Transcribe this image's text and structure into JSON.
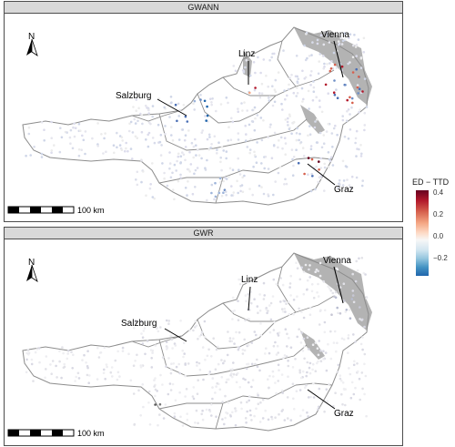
{
  "panels": [
    {
      "strip_label": "GWANN",
      "scalebar_label": "100 km",
      "cities": [
        {
          "name": "Linz"
        },
        {
          "name": "Vienna"
        },
        {
          "name": "Salzburg"
        },
        {
          "name": "Graz"
        }
      ],
      "north_label": "N"
    },
    {
      "strip_label": "GWR",
      "scalebar_label": "100 km",
      "cities": [
        {
          "name": "Linz"
        },
        {
          "name": "Vienna"
        },
        {
          "name": "Salzburg"
        },
        {
          "name": "Graz"
        }
      ],
      "north_label": "N"
    }
  ],
  "legend": {
    "title": "ED − TTD",
    "ticks": [
      "0.4",
      "0.2",
      "0.0",
      "−0.2"
    ],
    "high_color": "#67001f",
    "mid_color": "#f7f7f7",
    "low_color": "#2166ac"
  },
  "colors": {
    "border": "#8c8c8c",
    "masked_area": "#b3b3b3",
    "strip_bg": "#d9d9d9"
  }
}
